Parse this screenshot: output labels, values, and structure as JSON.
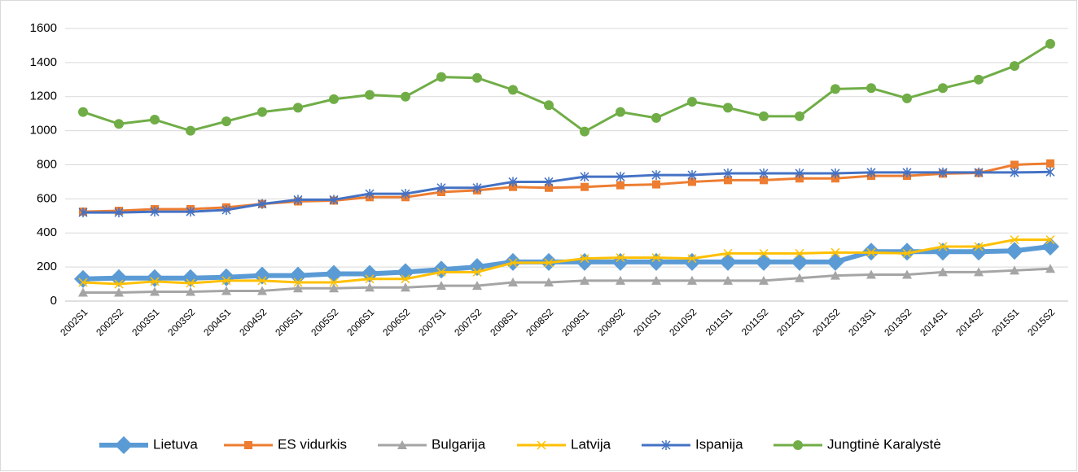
{
  "chart_data": {
    "type": "line",
    "categories": [
      "2002S1",
      "2002S2",
      "2003S1",
      "2003S2",
      "2004S1",
      "2004S2",
      "2005S1",
      "2005S2",
      "2006S1",
      "2006S2",
      "2007S1",
      "2007S2",
      "2008S1",
      "2008S2",
      "2009S1",
      "2009S2",
      "2010S1",
      "2010S2",
      "2011S1",
      "2011S2",
      "2012S1",
      "2012S2",
      "2013S1",
      "2013S2",
      "2014S1",
      "2014S2",
      "2015S1",
      "2015S2"
    ],
    "series": [
      {
        "name": "Lietuva",
        "color": "#5b9bd5",
        "marker": "diamond",
        "values": [
          130,
          135,
          135,
          135,
          140,
          150,
          150,
          160,
          160,
          170,
          185,
          200,
          230,
          230,
          230,
          230,
          230,
          230,
          230,
          230,
          230,
          230,
          290,
          290,
          290,
          290,
          295,
          320
        ]
      },
      {
        "name": "ES vidurkis",
        "color": "#ed7d31",
        "marker": "square",
        "values": [
          525,
          530,
          540,
          540,
          550,
          570,
          585,
          590,
          610,
          610,
          640,
          650,
          670,
          665,
          670,
          680,
          685,
          700,
          710,
          710,
          720,
          720,
          735,
          735,
          748,
          752,
          800,
          808
        ]
      },
      {
        "name": "Bulgarija",
        "color": "#a5a5a5",
        "marker": "triangle",
        "values": [
          50,
          50,
          55,
          55,
          60,
          60,
          75,
          75,
          80,
          80,
          90,
          90,
          110,
          110,
          120,
          120,
          120,
          120,
          120,
          120,
          135,
          150,
          155,
          155,
          170,
          170,
          180,
          190
        ]
      },
      {
        "name": "Latvija",
        "color": "#ffc000",
        "marker": "x",
        "values": [
          110,
          100,
          115,
          105,
          120,
          120,
          110,
          110,
          130,
          130,
          170,
          170,
          225,
          225,
          250,
          255,
          255,
          250,
          280,
          280,
          280,
          285,
          285,
          280,
          320,
          320,
          360,
          360
        ]
      },
      {
        "name": "Ispanija",
        "color": "#4472c4",
        "marker": "star",
        "values": [
          520,
          520,
          525,
          525,
          535,
          570,
          595,
          595,
          630,
          630,
          665,
          665,
          700,
          700,
          730,
          730,
          740,
          740,
          750,
          750,
          750,
          750,
          755,
          755,
          755,
          755,
          755,
          758
        ]
      },
      {
        "name": "Jungtinė Karalystė",
        "color": "#70ad47",
        "marker": "circle",
        "values": [
          1110,
          1040,
          1065,
          1000,
          1055,
          1110,
          1135,
          1185,
          1210,
          1200,
          1315,
          1310,
          1240,
          1150,
          995,
          1110,
          1075,
          1170,
          1135,
          1085,
          1085,
          1245,
          1250,
          1190,
          1250,
          1300,
          1380,
          1510
        ]
      }
    ],
    "ylim": [
      0,
      1600
    ],
    "yticks": [
      0,
      200,
      400,
      600,
      800,
      1000,
      1200,
      1400,
      1600
    ],
    "grid": true,
    "legend": "bottom"
  }
}
